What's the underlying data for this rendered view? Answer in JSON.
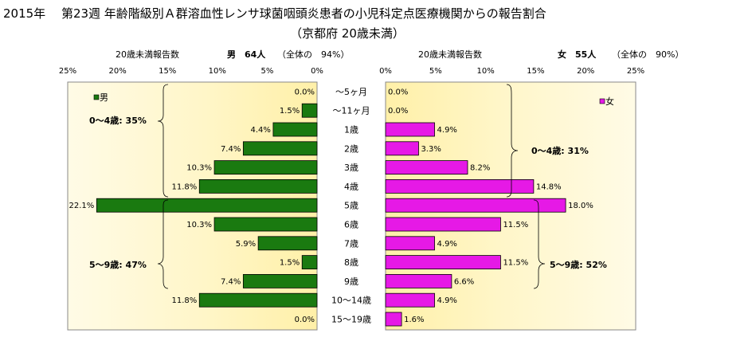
{
  "title": {
    "line1": "2015年　 第23週 年齢階級別Ａ群溶血性レンサ球菌咽頭炎患者の小児科定点医療機関からの報告割合",
    "line2": "（京都府 20歳未満）"
  },
  "headers": {
    "male_axis_label": "20歳未満報告数",
    "male_summary": "男　64人",
    "male_share": "（全体の　94%）",
    "female_axis_label": "20歳未満報告数",
    "female_summary": "女　55人",
    "female_share": "（全体の　90%）"
  },
  "chart_data": {
    "type": "bar",
    "orientation": "horizontal-population-pyramid",
    "categories": [
      "～5ヶ月",
      "～11ヶ月",
      "1歳",
      "2歳",
      "3歳",
      "4歳",
      "5歳",
      "6歳",
      "7歳",
      "8歳",
      "9歳",
      "10～14歳",
      "15～19歳"
    ],
    "series": [
      {
        "name": "男",
        "color": "#1a7a10",
        "values": [
          0.0,
          1.5,
          4.4,
          7.4,
          10.3,
          11.8,
          22.1,
          10.3,
          5.9,
          1.5,
          7.4,
          11.8,
          0.0
        ],
        "labels": [
          "0.0%",
          "1.5%",
          "4.4%",
          "7.4%",
          "10.3%",
          "11.8%",
          "22.1%",
          "10.3%",
          "5.9%",
          "1.5%",
          "7.4%",
          "11.8%",
          "0.0%"
        ]
      },
      {
        "name": "女",
        "color": "#e619e6",
        "values": [
          0.0,
          0.0,
          4.9,
          3.3,
          8.2,
          14.8,
          18.0,
          11.5,
          4.9,
          11.5,
          6.6,
          4.9,
          1.6
        ],
        "labels": [
          "0.0%",
          "0.0%",
          "4.9%",
          "3.3%",
          "8.2%",
          "14.8%",
          "18.0%",
          "11.5%",
          "4.9%",
          "11.5%",
          "6.6%",
          "4.9%",
          "1.6%"
        ]
      }
    ],
    "xlim": [
      0,
      25
    ],
    "male_ticks": [
      "25%",
      "20%",
      "15%",
      "10%",
      "5%",
      "0%"
    ],
    "female_ticks": [
      "0%",
      "5%",
      "10%",
      "15%",
      "20%",
      "25%"
    ],
    "annotations": {
      "male_0_4": "0～4歳: 35%",
      "male_5_9": "5～9歳: 47%",
      "female_0_4": "0～4歳: 31%",
      "female_5_9": "5～9歳: 52%"
    },
    "legend": {
      "male": "男",
      "female": "女",
      "male_placement": "top-left",
      "female_placement": "top-right"
    }
  }
}
